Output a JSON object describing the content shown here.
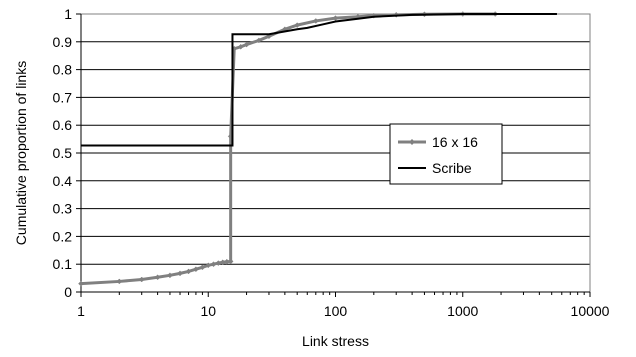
{
  "chart_data": {
    "type": "line",
    "title": "",
    "xlabel": "Link stress",
    "ylabel": "Cumulative proportion of links",
    "xscale": "log",
    "xlim": [
      1,
      10000
    ],
    "ylim": [
      0,
      1
    ],
    "xticks": [
      1,
      10,
      100,
      1000,
      10000
    ],
    "xtick_labels": [
      "1",
      "10",
      "100",
      "1000",
      "10000"
    ],
    "yticks": [
      0,
      0.1,
      0.2,
      0.3,
      0.4,
      0.5,
      0.6,
      0.7,
      0.8,
      0.9,
      1
    ],
    "ytick_labels": [
      "0",
      "0.1",
      "0.2",
      "0.3",
      "0.4",
      "0.5",
      "0.6",
      "0.7",
      "0.8",
      "0.9",
      "1"
    ],
    "grid": "horizontal",
    "legend_position": "right-middle",
    "series": [
      {
        "name": "16 x 16",
        "color": "#808080",
        "marker": "diamond",
        "step": false,
        "x": [
          1,
          2,
          3,
          4,
          5,
          6,
          7,
          8,
          9,
          10,
          11,
          12,
          13,
          14,
          15,
          15,
          16,
          18,
          20,
          25,
          30,
          40,
          50,
          70,
          100,
          150,
          200,
          300,
          500,
          1000,
          1800
        ],
        "y": [
          0.03,
          0.038,
          0.045,
          0.053,
          0.06,
          0.067,
          0.074,
          0.082,
          0.089,
          0.096,
          0.1,
          0.104,
          0.107,
          0.109,
          0.11,
          0.56,
          0.875,
          0.882,
          0.89,
          0.905,
          0.92,
          0.945,
          0.96,
          0.975,
          0.985,
          0.99,
          0.994,
          0.997,
          0.999,
          1.0,
          1.0
        ]
      },
      {
        "name": "Scribe",
        "color": "#000000",
        "marker": "none",
        "step": true,
        "x": [
          1,
          15.5,
          15.5,
          30,
          50,
          60,
          80,
          100,
          150,
          200,
          400,
          1000,
          5500
        ],
        "y": [
          0.527,
          0.527,
          0.927,
          0.927,
          0.945,
          0.95,
          0.963,
          0.973,
          0.983,
          0.99,
          0.997,
          1.0,
          1.0
        ]
      }
    ]
  }
}
